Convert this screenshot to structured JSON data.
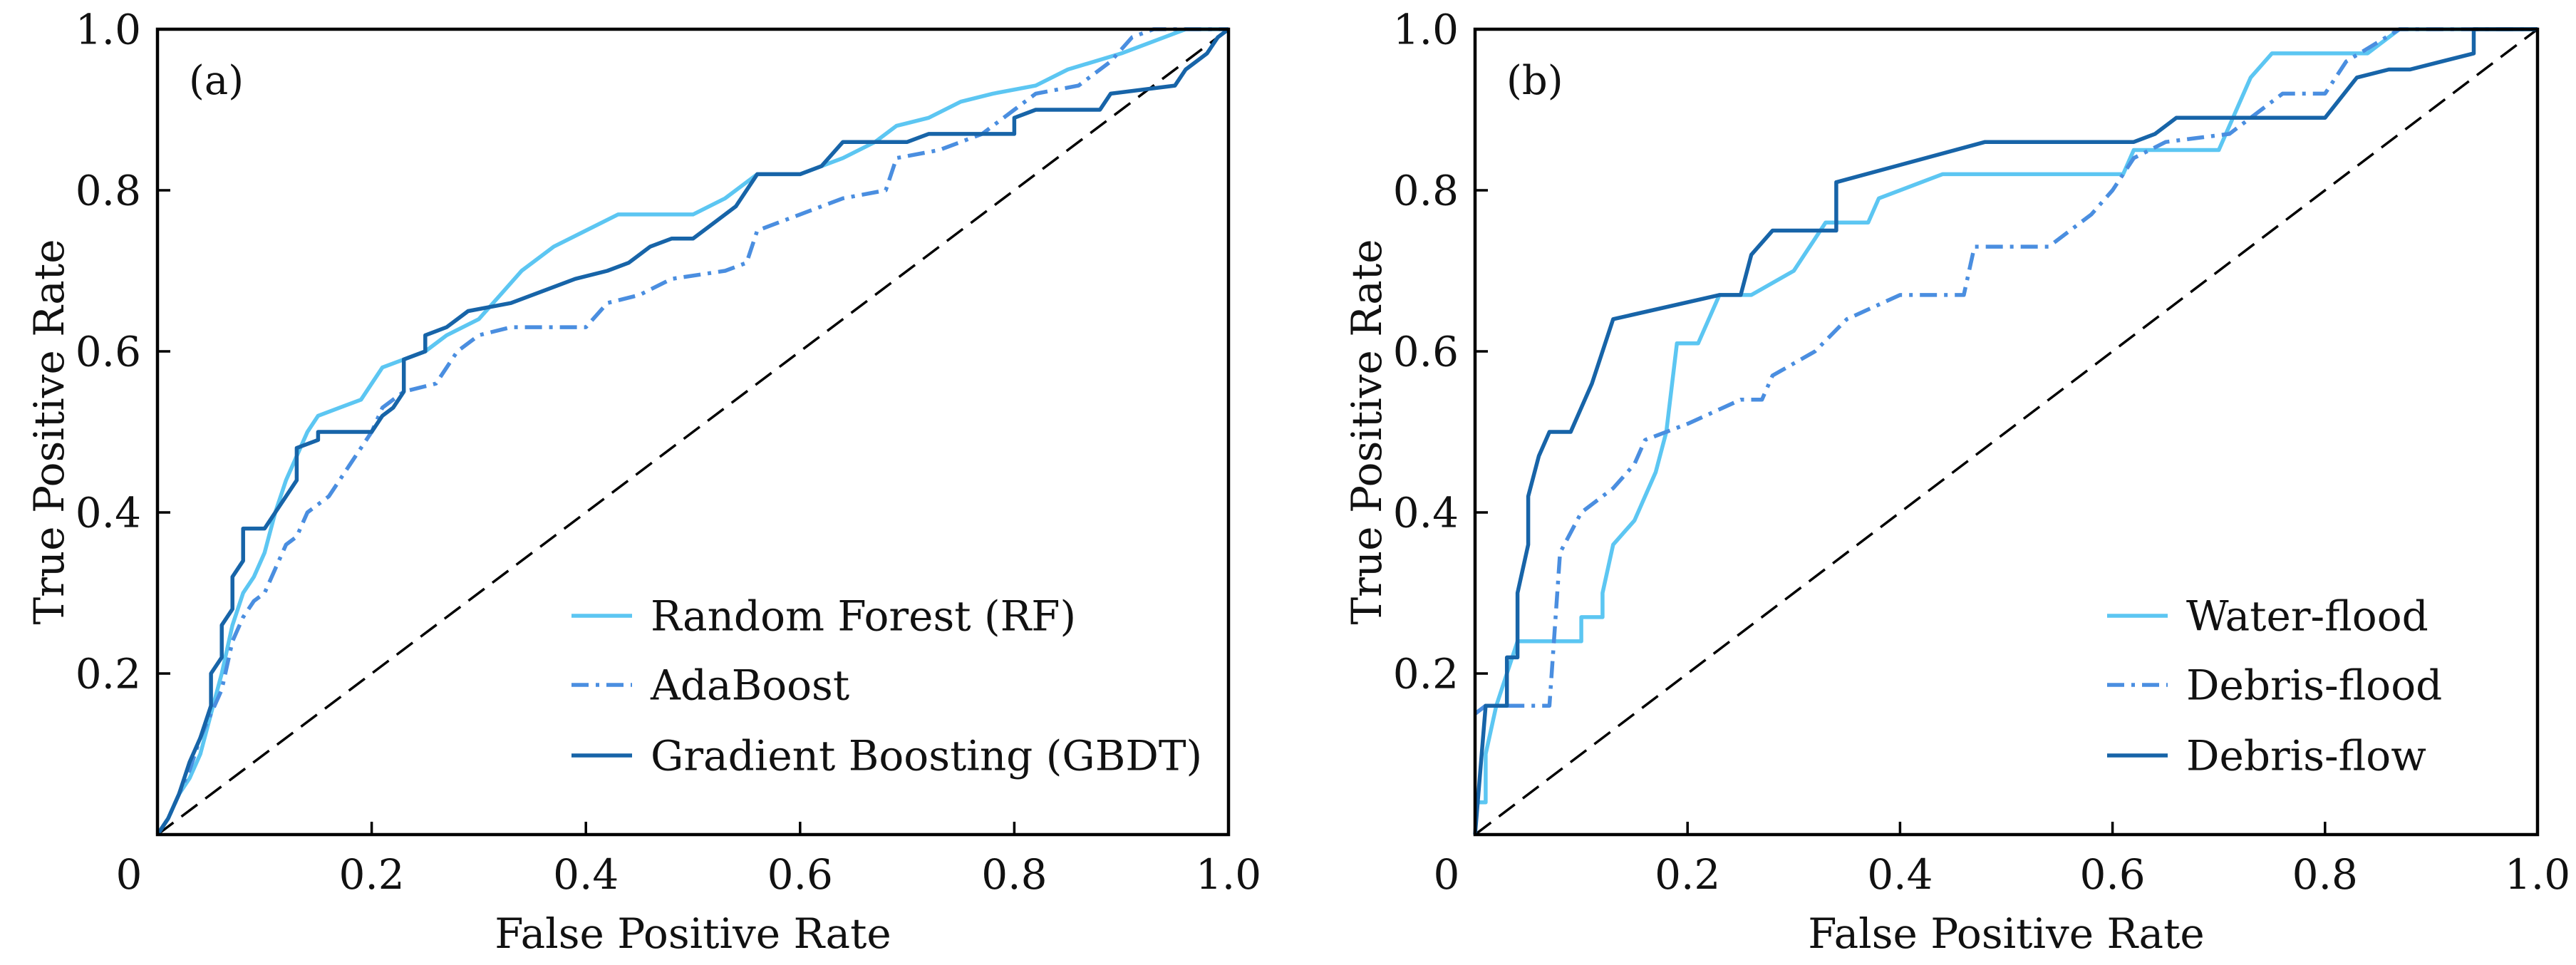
{
  "chart_data": [
    {
      "type": "line",
      "panel_label": "(a)",
      "title": "",
      "xlabel": "False Positive Rate",
      "ylabel": "True Positive Rate",
      "xlim": [
        0,
        1
      ],
      "ylim": [
        0,
        1
      ],
      "grid": false,
      "legend_position": "lower-right",
      "xticks": {
        "values": [
          0,
          0.2,
          0.4,
          0.6,
          0.8,
          1.0
        ],
        "labels": [
          "0",
          "0.2",
          "0.4",
          "0.6",
          "0.8",
          "1.0"
        ]
      },
      "yticks": {
        "values": [
          0.2,
          0.4,
          0.6,
          0.8,
          1.0
        ],
        "labels": [
          "0.2",
          "0.4",
          "0.6",
          "0.8",
          "1.0"
        ]
      },
      "reference_line": {
        "points": [
          [
            0,
            0
          ],
          [
            1,
            1
          ]
        ],
        "style": "dashed",
        "color": "#000000"
      },
      "series": [
        {
          "name": "Random Forest (RF)",
          "style": "solid",
          "color": "#5cc6f2",
          "points": [
            [
              0,
              0
            ],
            [
              0.01,
              0.02
            ],
            [
              0.02,
              0.05
            ],
            [
              0.03,
              0.07
            ],
            [
              0.04,
              0.1
            ],
            [
              0.05,
              0.15
            ],
            [
              0.06,
              0.2
            ],
            [
              0.07,
              0.26
            ],
            [
              0.08,
              0.3
            ],
            [
              0.09,
              0.32
            ],
            [
              0.1,
              0.35
            ],
            [
              0.11,
              0.4
            ],
            [
              0.12,
              0.44
            ],
            [
              0.13,
              0.47
            ],
            [
              0.14,
              0.5
            ],
            [
              0.15,
              0.52
            ],
            [
              0.17,
              0.53
            ],
            [
              0.19,
              0.54
            ],
            [
              0.2,
              0.56
            ],
            [
              0.21,
              0.58
            ],
            [
              0.23,
              0.59
            ],
            [
              0.25,
              0.6
            ],
            [
              0.27,
              0.62
            ],
            [
              0.3,
              0.64
            ],
            [
              0.32,
              0.67
            ],
            [
              0.34,
              0.7
            ],
            [
              0.37,
              0.73
            ],
            [
              0.4,
              0.75
            ],
            [
              0.43,
              0.77
            ],
            [
              0.5,
              0.77
            ],
            [
              0.53,
              0.79
            ],
            [
              0.56,
              0.82
            ],
            [
              0.6,
              0.82
            ],
            [
              0.64,
              0.84
            ],
            [
              0.67,
              0.86
            ],
            [
              0.69,
              0.88
            ],
            [
              0.72,
              0.89
            ],
            [
              0.75,
              0.91
            ],
            [
              0.78,
              0.92
            ],
            [
              0.82,
              0.93
            ],
            [
              0.85,
              0.95
            ],
            [
              0.9,
              0.97
            ],
            [
              0.94,
              0.99
            ],
            [
              0.96,
              1
            ],
            [
              1,
              1
            ]
          ]
        },
        {
          "name": "AdaBoost",
          "style": "dashdot",
          "color": "#4a8ee0",
          "points": [
            [
              0,
              0
            ],
            [
              0.01,
              0.02
            ],
            [
              0.02,
              0.05
            ],
            [
              0.03,
              0.08
            ],
            [
              0.04,
              0.12
            ],
            [
              0.05,
              0.15
            ],
            [
              0.06,
              0.18
            ],
            [
              0.07,
              0.24
            ],
            [
              0.08,
              0.27
            ],
            [
              0.09,
              0.29
            ],
            [
              0.1,
              0.3
            ],
            [
              0.11,
              0.33
            ],
            [
              0.12,
              0.36
            ],
            [
              0.13,
              0.37
            ],
            [
              0.14,
              0.4
            ],
            [
              0.16,
              0.42
            ],
            [
              0.17,
              0.44
            ],
            [
              0.18,
              0.46
            ],
            [
              0.2,
              0.5
            ],
            [
              0.21,
              0.53
            ],
            [
              0.23,
              0.55
            ],
            [
              0.26,
              0.56
            ],
            [
              0.28,
              0.6
            ],
            [
              0.3,
              0.62
            ],
            [
              0.33,
              0.63
            ],
            [
              0.4,
              0.63
            ],
            [
              0.42,
              0.66
            ],
            [
              0.45,
              0.67
            ],
            [
              0.48,
              0.69
            ],
            [
              0.53,
              0.7
            ],
            [
              0.55,
              0.71
            ],
            [
              0.56,
              0.75
            ],
            [
              0.6,
              0.77
            ],
            [
              0.64,
              0.79
            ],
            [
              0.68,
              0.8
            ],
            [
              0.69,
              0.84
            ],
            [
              0.73,
              0.85
            ],
            [
              0.77,
              0.87
            ],
            [
              0.8,
              0.9
            ],
            [
              0.82,
              0.92
            ],
            [
              0.86,
              0.93
            ],
            [
              0.89,
              0.96
            ],
            [
              0.91,
              0.99
            ],
            [
              0.93,
              1
            ],
            [
              1,
              1
            ]
          ]
        },
        {
          "name": "Gradient Boosting (GBDT)",
          "style": "solid",
          "color": "#1764a8",
          "points": [
            [
              0,
              0
            ],
            [
              0.01,
              0.02
            ],
            [
              0.02,
              0.05
            ],
            [
              0.03,
              0.09
            ],
            [
              0.04,
              0.12
            ],
            [
              0.05,
              0.16
            ],
            [
              0.05,
              0.2
            ],
            [
              0.06,
              0.22
            ],
            [
              0.06,
              0.26
            ],
            [
              0.07,
              0.28
            ],
            [
              0.07,
              0.32
            ],
            [
              0.08,
              0.34
            ],
            [
              0.08,
              0.38
            ],
            [
              0.1,
              0.38
            ],
            [
              0.11,
              0.4
            ],
            [
              0.12,
              0.42
            ],
            [
              0.13,
              0.44
            ],
            [
              0.13,
              0.48
            ],
            [
              0.15,
              0.49
            ],
            [
              0.15,
              0.5
            ],
            [
              0.2,
              0.5
            ],
            [
              0.21,
              0.52
            ],
            [
              0.22,
              0.53
            ],
            [
              0.23,
              0.55
            ],
            [
              0.23,
              0.59
            ],
            [
              0.25,
              0.6
            ],
            [
              0.25,
              0.62
            ],
            [
              0.27,
              0.63
            ],
            [
              0.29,
              0.65
            ],
            [
              0.33,
              0.66
            ],
            [
              0.35,
              0.67
            ],
            [
              0.39,
              0.69
            ],
            [
              0.42,
              0.7
            ],
            [
              0.44,
              0.71
            ],
            [
              0.46,
              0.73
            ],
            [
              0.48,
              0.74
            ],
            [
              0.5,
              0.74
            ],
            [
              0.52,
              0.76
            ],
            [
              0.54,
              0.78
            ],
            [
              0.56,
              0.82
            ],
            [
              0.6,
              0.82
            ],
            [
              0.62,
              0.83
            ],
            [
              0.64,
              0.86
            ],
            [
              0.7,
              0.86
            ],
            [
              0.72,
              0.87
            ],
            [
              0.8,
              0.87
            ],
            [
              0.8,
              0.89
            ],
            [
              0.82,
              0.9
            ],
            [
              0.88,
              0.9
            ],
            [
              0.89,
              0.92
            ],
            [
              0.95,
              0.93
            ],
            [
              0.96,
              0.95
            ],
            [
              0.98,
              0.97
            ],
            [
              0.99,
              0.99
            ],
            [
              1,
              1
            ]
          ]
        }
      ]
    },
    {
      "type": "line",
      "panel_label": "(b)",
      "title": "",
      "xlabel": "False Positive Rate",
      "ylabel": "True Positive Rate",
      "xlim": [
        0,
        1
      ],
      "ylim": [
        0,
        1
      ],
      "grid": false,
      "legend_position": "lower-right",
      "xticks": {
        "values": [
          0,
          0.2,
          0.4,
          0.6,
          0.8,
          1.0
        ],
        "labels": [
          "0",
          "0.2",
          "0.4",
          "0.6",
          "0.8",
          "1.0"
        ]
      },
      "yticks": {
        "values": [
          0.2,
          0.4,
          0.6,
          0.8,
          1.0
        ],
        "labels": [
          "0.2",
          "0.4",
          "0.6",
          "0.8",
          "1.0"
        ]
      },
      "reference_line": {
        "points": [
          [
            0,
            0
          ],
          [
            1,
            1
          ]
        ],
        "style": "dashed",
        "color": "#000000"
      },
      "series": [
        {
          "name": "Water-flood",
          "style": "solid",
          "color": "#5cc6f2",
          "points": [
            [
              0,
              0.04
            ],
            [
              0.01,
              0.04
            ],
            [
              0.01,
              0.1
            ],
            [
              0.02,
              0.16
            ],
            [
              0.03,
              0.2
            ],
            [
              0.04,
              0.24
            ],
            [
              0.1,
              0.24
            ],
            [
              0.1,
              0.27
            ],
            [
              0.12,
              0.27
            ],
            [
              0.12,
              0.3
            ],
            [
              0.13,
              0.36
            ],
            [
              0.15,
              0.39
            ],
            [
              0.16,
              0.42
            ],
            [
              0.17,
              0.45
            ],
            [
              0.18,
              0.5
            ],
            [
              0.19,
              0.61
            ],
            [
              0.21,
              0.61
            ],
            [
              0.22,
              0.64
            ],
            [
              0.23,
              0.67
            ],
            [
              0.26,
              0.67
            ],
            [
              0.3,
              0.7
            ],
            [
              0.33,
              0.76
            ],
            [
              0.37,
              0.76
            ],
            [
              0.38,
              0.79
            ],
            [
              0.44,
              0.82
            ],
            [
              0.61,
              0.82
            ],
            [
              0.62,
              0.85
            ],
            [
              0.7,
              0.85
            ],
            [
              0.71,
              0.88
            ],
            [
              0.73,
              0.94
            ],
            [
              0.75,
              0.97
            ],
            [
              0.84,
              0.97
            ],
            [
              0.87,
              1
            ],
            [
              1,
              1
            ]
          ]
        },
        {
          "name": "Debris-flood",
          "style": "dashdot",
          "color": "#4a8ee0",
          "points": [
            [
              0,
              0.15
            ],
            [
              0.01,
              0.16
            ],
            [
              0.07,
              0.16
            ],
            [
              0.08,
              0.35
            ],
            [
              0.1,
              0.4
            ],
            [
              0.13,
              0.43
            ],
            [
              0.15,
              0.46
            ],
            [
              0.16,
              0.49
            ],
            [
              0.2,
              0.51
            ],
            [
              0.25,
              0.54
            ],
            [
              0.27,
              0.54
            ],
            [
              0.28,
              0.57
            ],
            [
              0.32,
              0.6
            ],
            [
              0.35,
              0.64
            ],
            [
              0.4,
              0.67
            ],
            [
              0.46,
              0.67
            ],
            [
              0.47,
              0.73
            ],
            [
              0.54,
              0.73
            ],
            [
              0.58,
              0.77
            ],
            [
              0.6,
              0.8
            ],
            [
              0.62,
              0.84
            ],
            [
              0.65,
              0.86
            ],
            [
              0.71,
              0.87
            ],
            [
              0.76,
              0.92
            ],
            [
              0.8,
              0.92
            ],
            [
              0.82,
              0.96
            ],
            [
              0.87,
              1
            ],
            [
              1,
              1
            ]
          ]
        },
        {
          "name": "Debris-flow",
          "style": "solid",
          "color": "#1764a8",
          "points": [
            [
              0,
              0
            ],
            [
              0.01,
              0.16
            ],
            [
              0.03,
              0.16
            ],
            [
              0.03,
              0.22
            ],
            [
              0.04,
              0.22
            ],
            [
              0.04,
              0.3
            ],
            [
              0.05,
              0.36
            ],
            [
              0.05,
              0.42
            ],
            [
              0.06,
              0.47
            ],
            [
              0.07,
              0.5
            ],
            [
              0.09,
              0.5
            ],
            [
              0.11,
              0.56
            ],
            [
              0.13,
              0.64
            ],
            [
              0.23,
              0.67
            ],
            [
              0.25,
              0.67
            ],
            [
              0.26,
              0.72
            ],
            [
              0.28,
              0.75
            ],
            [
              0.34,
              0.75
            ],
            [
              0.34,
              0.81
            ],
            [
              0.48,
              0.86
            ],
            [
              0.62,
              0.86
            ],
            [
              0.64,
              0.87
            ],
            [
              0.66,
              0.89
            ],
            [
              0.8,
              0.89
            ],
            [
              0.83,
              0.94
            ],
            [
              0.86,
              0.95
            ],
            [
              0.88,
              0.95
            ],
            [
              0.94,
              0.97
            ],
            [
              0.94,
              1
            ],
            [
              1,
              1
            ]
          ]
        }
      ]
    }
  ]
}
